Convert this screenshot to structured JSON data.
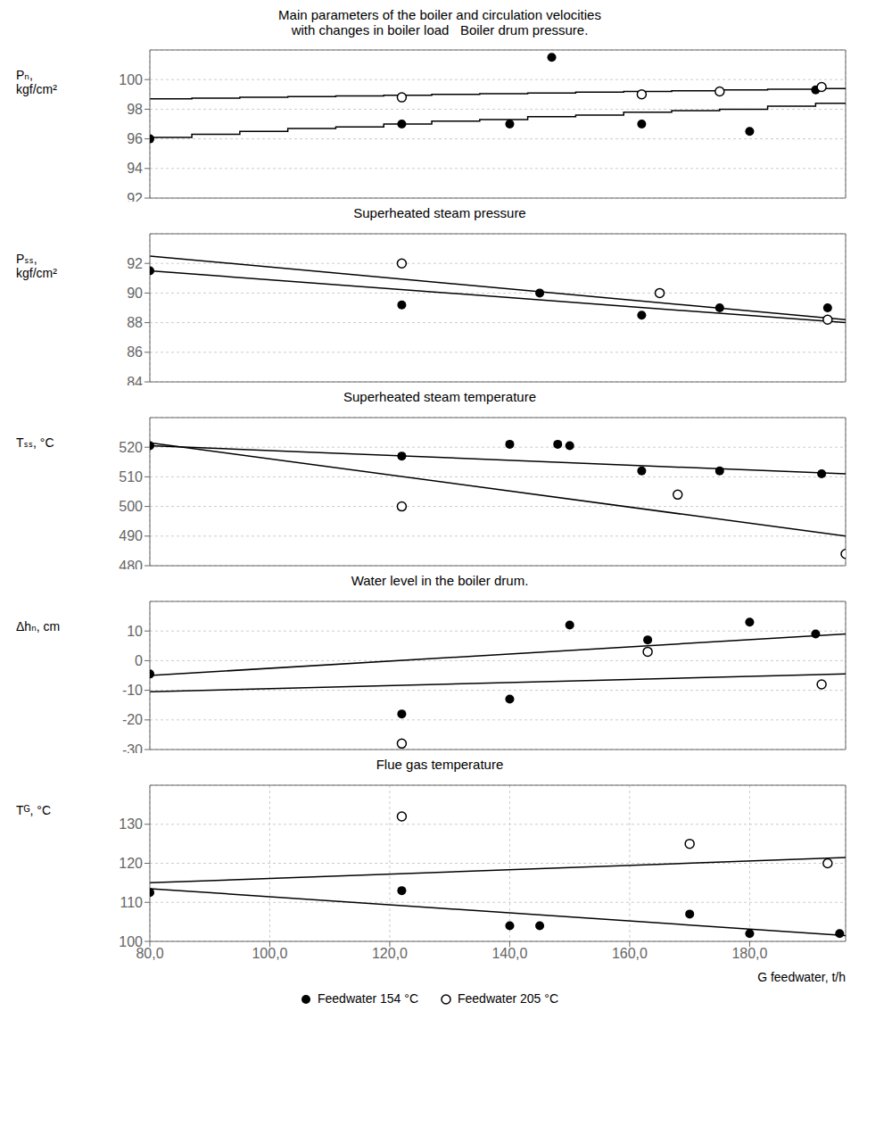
{
  "chart_data": [
    {
      "type": "line",
      "title": "Main parameters of the boiler and circulation velocities\nwith changes in boiler load   Boiler drum pressure.",
      "subtitle": "Superheated steam pressure",
      "y_label": "Pₙ,\nkgf/cm²",
      "xlim": [
        80,
        196
      ],
      "xticks": [
        80,
        100,
        120,
        140,
        160,
        180
      ],
      "ylim": [
        92,
        102
      ],
      "yticks": [
        92,
        94,
        96,
        98,
        100
      ],
      "grid": true,
      "tick_labels": "y",
      "series": [
        {
          "type": "line",
          "color": "#000000",
          "x": [
            80,
            87,
            87,
            95,
            95,
            103,
            103,
            111,
            111,
            119,
            119,
            127,
            127,
            135,
            135,
            143,
            143,
            151,
            151,
            159,
            159,
            167,
            167,
            175,
            175,
            183,
            183,
            191,
            191,
            196
          ],
          "values": [
            96.1,
            96.1,
            96.3,
            96.3,
            96.5,
            96.5,
            96.7,
            96.7,
            96.8,
            96.8,
            97.0,
            97.0,
            97.2,
            97.2,
            97.3,
            97.3,
            97.5,
            97.5,
            97.6,
            97.6,
            97.8,
            97.8,
            97.9,
            97.9,
            98.0,
            98.0,
            98.2,
            98.2,
            98.4,
            98.4
          ]
        },
        {
          "type": "line",
          "color": "#000000",
          "x": [
            80,
            87,
            87,
            95,
            95,
            103,
            103,
            111,
            111,
            119,
            119,
            127,
            127,
            135,
            135,
            143,
            143,
            151,
            151,
            159,
            159,
            167,
            167,
            175,
            175,
            183,
            183,
            191,
            191,
            196
          ],
          "values": [
            98.7,
            98.7,
            98.75,
            98.75,
            98.8,
            98.8,
            98.85,
            98.85,
            98.9,
            98.9,
            98.95,
            98.95,
            99.0,
            99.0,
            99.05,
            99.05,
            99.1,
            99.1,
            99.15,
            99.15,
            99.2,
            99.2,
            99.25,
            99.25,
            99.3,
            99.3,
            99.35,
            99.35,
            99.4,
            99.4
          ]
        },
        {
          "type": "scatter",
          "marker": "filled",
          "color": "#000000",
          "x": [
            80,
            122,
            140,
            147,
            162,
            180,
            191
          ],
          "values": [
            96.0,
            97.0,
            97.0,
            101.5,
            97.0,
            96.5,
            99.3
          ]
        },
        {
          "type": "scatter",
          "marker": "open",
          "color": "#000000",
          "x": [
            122,
            162,
            175,
            192
          ],
          "values": [
            98.8,
            99.0,
            99.2,
            99.5
          ]
        }
      ]
    },
    {
      "type": "line",
      "subtitle": "Superheated steam temperature",
      "y_label": "Pₛₛ,\nkgf/cm²",
      "xlim": [
        80,
        196
      ],
      "xticks": [
        80,
        100,
        120,
        140,
        160,
        180
      ],
      "ylim": [
        84,
        94
      ],
      "yticks": [
        84,
        86,
        88,
        90,
        92
      ],
      "grid": true,
      "tick_labels": "y",
      "series": [
        {
          "type": "line",
          "color": "#000000",
          "x": [
            80,
            196
          ],
          "values": [
            91.5,
            88.0
          ]
        },
        {
          "type": "line",
          "color": "#000000",
          "x": [
            80,
            196
          ],
          "values": [
            92.5,
            88.2
          ]
        },
        {
          "type": "scatter",
          "marker": "filled",
          "color": "#000000",
          "x": [
            80,
            122,
            145,
            162,
            175,
            193
          ],
          "values": [
            91.5,
            89.2,
            90.0,
            88.5,
            89.0,
            89.0
          ]
        },
        {
          "type": "scatter",
          "marker": "open",
          "color": "#000000",
          "x": [
            122,
            165,
            193
          ],
          "values": [
            92.0,
            90.0,
            88.2
          ]
        }
      ]
    },
    {
      "type": "line",
      "subtitle": "Water level in the boiler drum.",
      "y_label": "Tₛₛ, °C",
      "xlim": [
        80,
        196
      ],
      "xticks": [
        80,
        100,
        120,
        140,
        160,
        180
      ],
      "ylim": [
        480,
        530
      ],
      "yticks": [
        480,
        490,
        500,
        510,
        520
      ],
      "grid": true,
      "tick_labels": "y",
      "series": [
        {
          "type": "line",
          "color": "#000000",
          "x": [
            80,
            196
          ],
          "values": [
            520.5,
            511.0
          ]
        },
        {
          "type": "line",
          "color": "#000000",
          "x": [
            80,
            196
          ],
          "values": [
            521.5,
            490.0
          ]
        },
        {
          "type": "scatter",
          "marker": "filled",
          "color": "#000000",
          "x": [
            80,
            122,
            140,
            148,
            150,
            162,
            175,
            192
          ],
          "values": [
            520.5,
            517.0,
            521.0,
            521.0,
            520.5,
            512.0,
            512.0,
            511.0
          ]
        },
        {
          "type": "scatter",
          "marker": "open",
          "color": "#000000",
          "x": [
            122,
            168,
            196
          ],
          "values": [
            500.0,
            504.0,
            484.0
          ]
        }
      ]
    },
    {
      "type": "line",
      "subtitle": "Flue gas temperature",
      "y_label": "Δhₙ, cm",
      "xlim": [
        80,
        196
      ],
      "xticks": [
        80,
        100,
        120,
        140,
        160,
        180
      ],
      "ylim": [
        -30,
        20
      ],
      "yticks": [
        -30,
        -20,
        -10,
        0,
        10
      ],
      "grid": true,
      "tick_labels": "y",
      "series": [
        {
          "type": "line",
          "color": "#000000",
          "x": [
            80,
            196
          ],
          "values": [
            -5.0,
            9.0
          ]
        },
        {
          "type": "line",
          "color": "#000000",
          "x": [
            80,
            196
          ],
          "values": [
            -10.5,
            -4.5
          ]
        },
        {
          "type": "scatter",
          "marker": "filled",
          "color": "#000000",
          "x": [
            80,
            122,
            140,
            150,
            163,
            180,
            191
          ],
          "values": [
            -4.5,
            -18.0,
            -13.0,
            12.0,
            7.0,
            13.0,
            9.0
          ]
        },
        {
          "type": "scatter",
          "marker": "open",
          "color": "#000000",
          "x": [
            122,
            163,
            192
          ],
          "values": [
            -28.0,
            3.0,
            -8.0
          ]
        }
      ]
    },
    {
      "type": "line",
      "y_label": "Tᴳ, °C",
      "x_label": "G feedwater, t/h",
      "xlim": [
        80,
        196
      ],
      "xticks": [
        {
          "value": 80,
          "label": "80,0"
        },
        {
          "value": 100,
          "label": "100,0"
        },
        {
          "value": 120,
          "label": "120,0"
        },
        {
          "value": 140,
          "label": "140,0"
        },
        {
          "value": 160,
          "label": "160,0"
        },
        {
          "value": 180,
          "label": "180,0"
        }
      ],
      "ylim": [
        100,
        140
      ],
      "yticks": [
        100,
        110,
        120,
        130
      ],
      "grid": true,
      "legend": "bottom",
      "series": [
        {
          "type": "line",
          "color": "#000000",
          "x": [
            80,
            196
          ],
          "values": [
            113.5,
            101.5
          ]
        },
        {
          "type": "line",
          "color": "#000000",
          "x": [
            80,
            196
          ],
          "values": [
            115.0,
            121.5
          ]
        },
        {
          "type": "scatter",
          "name": "Feedwater 154 °C",
          "marker": "filled",
          "color": "#000000",
          "x": [
            80,
            122,
            140,
            145,
            170,
            180,
            195
          ],
          "values": [
            112.5,
            113.0,
            104.0,
            104.0,
            107.0,
            102.0,
            102.0
          ]
        },
        {
          "type": "scatter",
          "name": "Feedwater 205 °C",
          "marker": "open",
          "color": "#000000",
          "x": [
            122,
            170,
            193
          ],
          "values": [
            132.0,
            125.0,
            120.0
          ]
        }
      ]
    }
  ]
}
